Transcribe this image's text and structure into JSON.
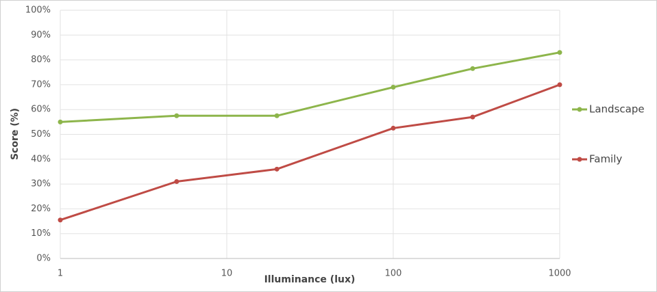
{
  "chart_data": {
    "type": "line",
    "x_label": "Illuminance (lux)",
    "y_label": "Score (%)",
    "x": [
      1,
      5,
      20,
      100,
      300,
      1000
    ],
    "series": [
      {
        "name": "Landscape",
        "color": "#8db54b",
        "values": [
          55,
          57.5,
          57.5,
          69,
          76.5,
          83
        ]
      },
      {
        "name": "Family",
        "color": "#bf4b45",
        "values": [
          15.5,
          31,
          36,
          52.5,
          57,
          70
        ]
      }
    ],
    "xlim": [
      1,
      1000
    ],
    "xticks": [
      1,
      10,
      100,
      1000
    ],
    "x_log": true,
    "ylim": [
      0,
      100
    ],
    "yticks": [
      {
        "value": 0,
        "label": "0%"
      },
      {
        "value": 10,
        "label": "10%"
      },
      {
        "value": 20,
        "label": "20%"
      },
      {
        "value": 30,
        "label": "30%"
      },
      {
        "value": 40,
        "label": "40%"
      },
      {
        "value": 50,
        "label": "50%"
      },
      {
        "value": 60,
        "label": "60%"
      },
      {
        "value": 70,
        "label": "70%"
      },
      {
        "value": 80,
        "label": "80%"
      },
      {
        "value": 90,
        "label": "90%"
      },
      {
        "value": 100,
        "label": "100%"
      }
    ],
    "grid": true,
    "legend_position": "right"
  }
}
